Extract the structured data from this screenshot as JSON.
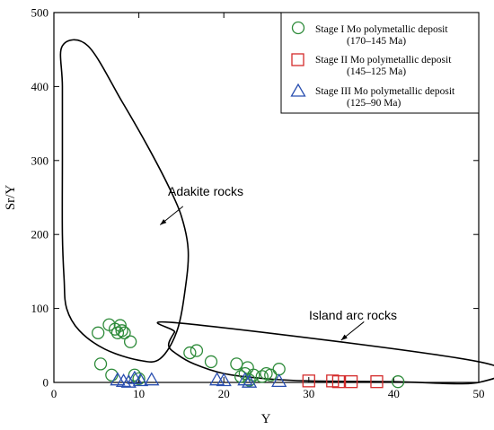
{
  "chart_data": {
    "type": "scatter",
    "xlabel": "Y",
    "ylabel": "Sr/Y",
    "xlim": [
      0,
      50
    ],
    "ylim": [
      0,
      500
    ],
    "x_ticks": [
      0,
      10,
      20,
      30,
      40,
      50
    ],
    "y_ticks": [
      0,
      100,
      200,
      300,
      400,
      500
    ],
    "legend_position": "top-right",
    "series": [
      {
        "name": "Stage I Mo polymetallic deposit",
        "age": "(170–145 Ma)",
        "marker": "circle",
        "color": "#2e8b3a",
        "points": [
          [
            5.2,
            67
          ],
          [
            5.5,
            25
          ],
          [
            6.5,
            78
          ],
          [
            6.8,
            10
          ],
          [
            7.2,
            72
          ],
          [
            7.5,
            67
          ],
          [
            7.8,
            77
          ],
          [
            8.0,
            70
          ],
          [
            8.3,
            67
          ],
          [
            9.0,
            55
          ],
          [
            9.5,
            10
          ],
          [
            10.0,
            5
          ],
          [
            16.0,
            40
          ],
          [
            16.8,
            43
          ],
          [
            18.5,
            28
          ],
          [
            21.5,
            25
          ],
          [
            22.0,
            8
          ],
          [
            22.5,
            12
          ],
          [
            22.8,
            20
          ],
          [
            23.0,
            3
          ],
          [
            23.5,
            10
          ],
          [
            24.5,
            8
          ],
          [
            25.0,
            12
          ],
          [
            25.5,
            10
          ],
          [
            26.5,
            18
          ],
          [
            40.5,
            1
          ]
        ]
      },
      {
        "name": "Stage II Mo polymetallic deposit",
        "age": "(145–125 Ma)",
        "marker": "square",
        "color": "#d42b2b",
        "points": [
          [
            30.0,
            2
          ],
          [
            32.8,
            2
          ],
          [
            33.5,
            1
          ],
          [
            35.0,
            1
          ],
          [
            38.0,
            1
          ]
        ]
      },
      {
        "name": "Stage III Mo polymetallic deposit",
        "age": "(125–90 Ma)",
        "marker": "triangle",
        "color": "#2a4fb0",
        "points": [
          [
            7.5,
            4
          ],
          [
            8.2,
            2
          ],
          [
            8.8,
            1
          ],
          [
            9.5,
            6
          ],
          [
            10.2,
            3
          ],
          [
            11.5,
            4
          ],
          [
            19.2,
            4
          ],
          [
            20.0,
            3
          ],
          [
            22.5,
            4
          ],
          [
            23.0,
            1
          ],
          [
            26.5,
            2
          ]
        ]
      }
    ],
    "regions": [
      {
        "label": "Adakite rocks",
        "boundary": [
          [
            1.0,
            455
          ],
          [
            1.0,
            400
          ],
          [
            1.0,
            300
          ],
          [
            1.0,
            200
          ],
          [
            1.2,
            140
          ],
          [
            1.5,
            100
          ],
          [
            3.0,
            70
          ],
          [
            6.0,
            45
          ],
          [
            10.0,
            30
          ],
          [
            12.5,
            32
          ],
          [
            14.5,
            70
          ],
          [
            15.5,
            130
          ],
          [
            15.8,
            180
          ],
          [
            15.0,
            225
          ],
          [
            13.5,
            265
          ],
          [
            11.0,
            320
          ],
          [
            8.0,
            380
          ],
          [
            4.0,
            455
          ]
        ],
        "arrow_from": [
          15.2,
          238
        ],
        "arrow_to": [
          12.5,
          213
        ]
      },
      {
        "label": "Island arc rocks",
        "boundary": [
          [
            15.0,
            80
          ],
          [
            50.0,
            28
          ],
          [
            50.0,
            0
          ],
          [
            40.0,
            1
          ],
          [
            30.0,
            2
          ],
          [
            25.0,
            5
          ],
          [
            20.0,
            12
          ],
          [
            16.5,
            25
          ],
          [
            14.5,
            38
          ],
          [
            13.5,
            50
          ],
          [
            14.2,
            68
          ]
        ],
        "arrow_from": [
          36.5,
          82
        ],
        "arrow_to": [
          33.8,
          57
        ]
      }
    ]
  }
}
